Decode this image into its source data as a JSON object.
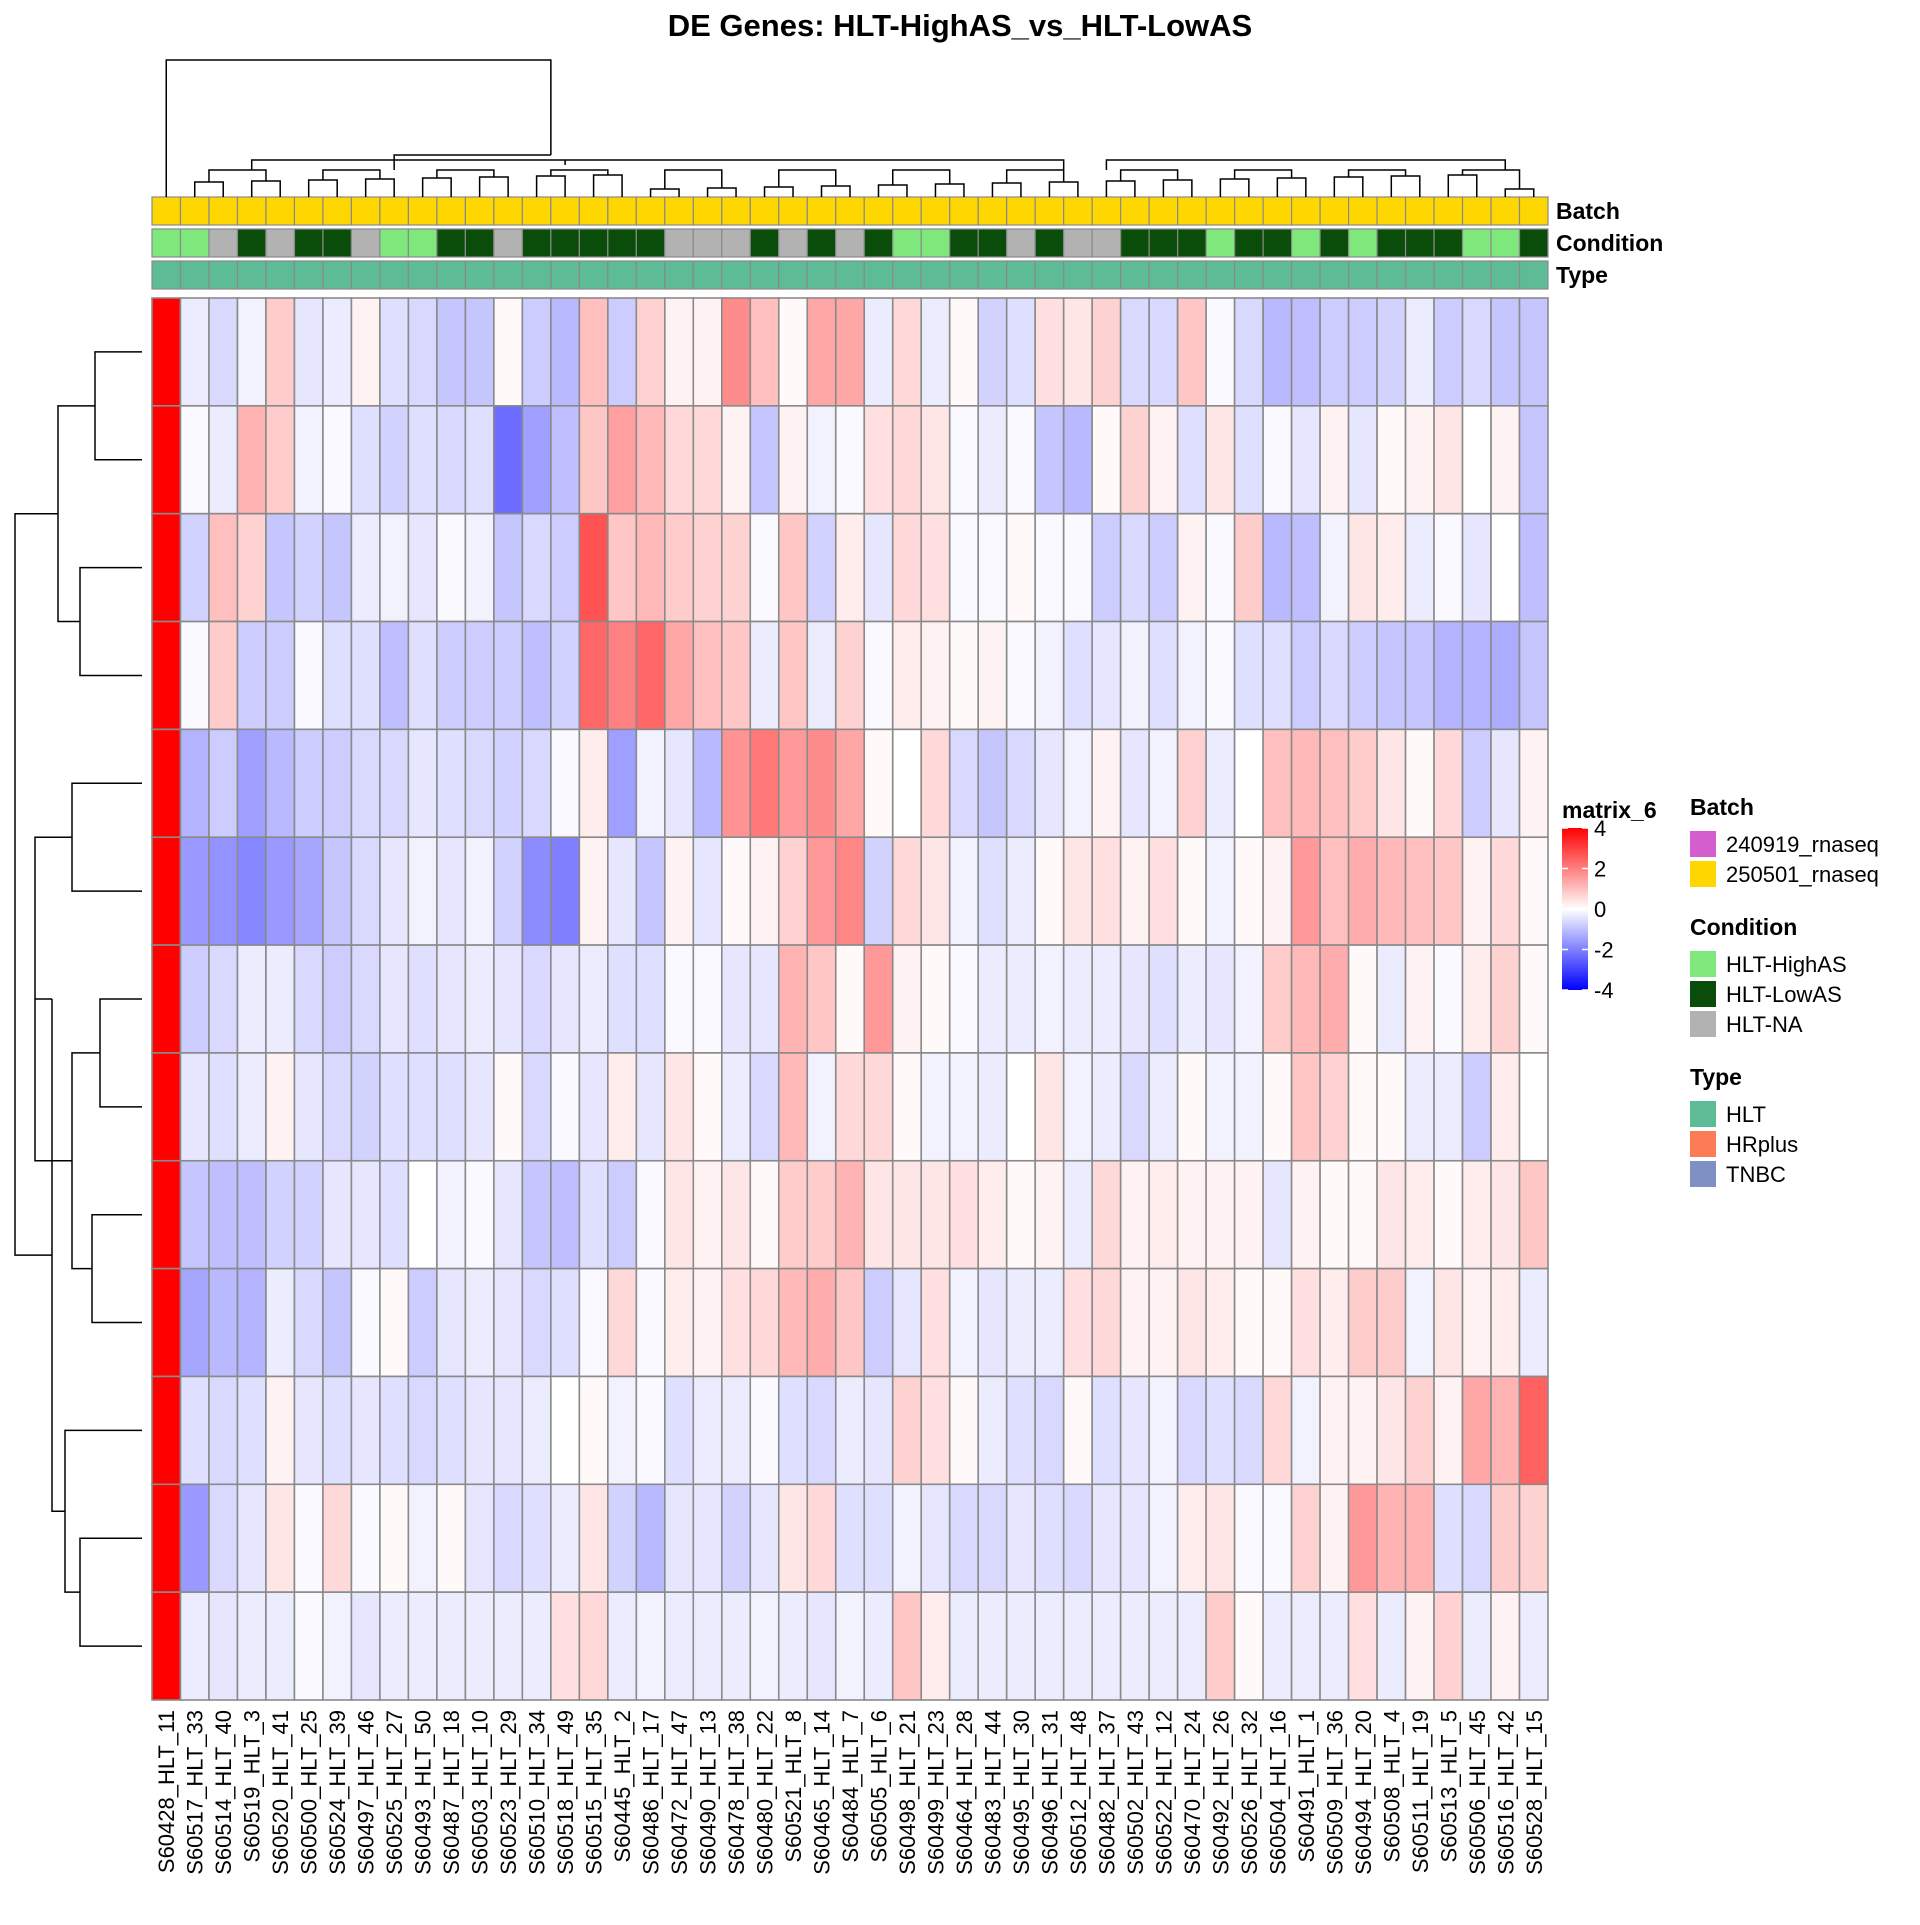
{
  "chart_data": {
    "type": "heatmap",
    "title": "DE Genes: HLT-HighAS_vs_HLT-LowAS",
    "columns": [
      "S60428_HLT_11",
      "S60517_HLT_33",
      "S60514_HLT_40",
      "S60519_HLT_3",
      "S60520_HLT_41",
      "S60500_HLT_25",
      "S60524_HLT_39",
      "S60497_HLT_46",
      "S60525_HLT_27",
      "S60493_HLT_50",
      "S60487_HLT_18",
      "S60503_HLT_10",
      "S60523_HLT_29",
      "S60510_HLT_34",
      "S60518_HLT_49",
      "S60515_HLT_35",
      "S60445_HLT_2",
      "S60486_HLT_17",
      "S60472_HLT_47",
      "S60490_HLT_13",
      "S60478_HLT_38",
      "S60480_HLT_22",
      "S60521_HLT_8",
      "S60465_HLT_14",
      "S60484_HLT_7",
      "S60505_HLT_6",
      "S60498_HLT_21",
      "S60499_HLT_23",
      "S60464_HLT_28",
      "S60483_HLT_44",
      "S60495_HLT_30",
      "S60496_HLT_31",
      "S60512_HLT_48",
      "S60482_HLT_37",
      "S60502_HLT_43",
      "S60522_HLT_12",
      "S60470_HLT_24",
      "S60492_HLT_26",
      "S60526_HLT_32",
      "S60504_HLT_16",
      "S60491_HLT_1",
      "S60509_HLT_36",
      "S60494_HLT_20",
      "S60508_HLT_4",
      "S60511_HLT_19",
      "S60513_HLT_5",
      "S60506_HLT_45",
      "S60516_HLT_42",
      "S60528_HLT_15"
    ],
    "annotations": {
      "Batch": [
        "250501_rnaseq",
        "250501_rnaseq",
        "250501_rnaseq",
        "250501_rnaseq",
        "250501_rnaseq",
        "250501_rnaseq",
        "250501_rnaseq",
        "250501_rnaseq",
        "250501_rnaseq",
        "250501_rnaseq",
        "250501_rnaseq",
        "250501_rnaseq",
        "250501_rnaseq",
        "250501_rnaseq",
        "250501_rnaseq",
        "250501_rnaseq",
        "250501_rnaseq",
        "250501_rnaseq",
        "250501_rnaseq",
        "250501_rnaseq",
        "250501_rnaseq",
        "250501_rnaseq",
        "250501_rnaseq",
        "250501_rnaseq",
        "250501_rnaseq",
        "250501_rnaseq",
        "250501_rnaseq",
        "250501_rnaseq",
        "250501_rnaseq",
        "250501_rnaseq",
        "250501_rnaseq",
        "250501_rnaseq",
        "250501_rnaseq",
        "250501_rnaseq",
        "250501_rnaseq",
        "250501_rnaseq",
        "250501_rnaseq",
        "250501_rnaseq",
        "250501_rnaseq",
        "250501_rnaseq",
        "250501_rnaseq",
        "250501_rnaseq",
        "250501_rnaseq",
        "250501_rnaseq",
        "250501_rnaseq",
        "250501_rnaseq",
        "250501_rnaseq",
        "250501_rnaseq",
        "250501_rnaseq"
      ],
      "Condition": [
        "HLT-HighAS",
        "HLT-HighAS",
        "HLT-NA",
        "HLT-LowAS",
        "HLT-NA",
        "HLT-LowAS",
        "HLT-LowAS",
        "HLT-NA",
        "HLT-HighAS",
        "HLT-HighAS",
        "HLT-LowAS",
        "HLT-LowAS",
        "HLT-NA",
        "HLT-LowAS",
        "HLT-LowAS",
        "HLT-LowAS",
        "HLT-LowAS",
        "HLT-LowAS",
        "HLT-NA",
        "HLT-NA",
        "HLT-NA",
        "HLT-LowAS",
        "HLT-NA",
        "HLT-LowAS",
        "HLT-NA",
        "HLT-LowAS",
        "HLT-HighAS",
        "HLT-HighAS",
        "HLT-LowAS",
        "HLT-LowAS",
        "HLT-NA",
        "HLT-LowAS",
        "HLT-NA",
        "HLT-NA",
        "HLT-LowAS",
        "HLT-LowAS",
        "HLT-LowAS",
        "HLT-HighAS",
        "HLT-LowAS",
        "HLT-LowAS",
        "HLT-HighAS",
        "HLT-LowAS",
        "HLT-HighAS",
        "HLT-LowAS",
        "HLT-LowAS",
        "HLT-LowAS",
        "HLT-HighAS",
        "HLT-HighAS",
        "HLT-LowAS"
      ],
      "Type": [
        "HLT",
        "HLT",
        "HLT",
        "HLT",
        "HLT",
        "HLT",
        "HLT",
        "HLT",
        "HLT",
        "HLT",
        "HLT",
        "HLT",
        "HLT",
        "HLT",
        "HLT",
        "HLT",
        "HLT",
        "HLT",
        "HLT",
        "HLT",
        "HLT",
        "HLT",
        "HLT",
        "HLT",
        "HLT",
        "HLT",
        "HLT",
        "HLT",
        "HLT",
        "HLT",
        "HLT",
        "HLT",
        "HLT",
        "HLT",
        "HLT",
        "HLT",
        "HLT",
        "HLT",
        "HLT",
        "HLT",
        "HLT",
        "HLT",
        "HLT",
        "HLT",
        "HLT",
        "HLT",
        "HLT",
        "HLT",
        "HLT"
      ]
    },
    "annotation_labels": [
      "Batch",
      "Condition",
      "Type"
    ],
    "values": [
      [
        4.5,
        -0.3,
        -0.6,
        -0.2,
        0.8,
        -0.4,
        -0.3,
        0.2,
        -0.5,
        -0.6,
        -0.9,
        -0.9,
        0.1,
        -0.8,
        -1.1,
        1.0,
        -0.8,
        0.7,
        0.2,
        0.2,
        1.8,
        1.0,
        0.1,
        1.4,
        1.4,
        -0.3,
        0.6,
        -0.3,
        0.1,
        -0.7,
        -0.5,
        0.5,
        0.4,
        0.7,
        -0.6,
        -0.6,
        0.9,
        -0.1,
        -0.6,
        -1.1,
        -1.0,
        -0.8,
        -0.8,
        -0.7,
        -0.3,
        -0.8,
        -0.6,
        -0.9,
        -0.9
      ],
      [
        4.5,
        -0.1,
        -0.3,
        1.2,
        0.8,
        -0.2,
        -0.1,
        -0.5,
        -0.7,
        -0.5,
        -0.6,
        -0.5,
        -2.3,
        -1.5,
        -1.0,
        0.9,
        1.5,
        1.1,
        0.6,
        0.6,
        0.2,
        -0.9,
        0.2,
        -0.2,
        -0.1,
        0.5,
        0.6,
        0.4,
        -0.1,
        -0.3,
        -0.1,
        -0.9,
        -1.1,
        0.1,
        0.7,
        0.2,
        -0.5,
        0.4,
        -0.5,
        -0.1,
        -0.4,
        0.2,
        -0.4,
        0.1,
        0.2,
        0.4,
        0.0,
        0.2,
        -0.9
      ],
      [
        4.5,
        -0.7,
        1.0,
        0.7,
        -0.9,
        -0.7,
        -0.9,
        -0.3,
        -0.2,
        -0.4,
        -0.1,
        -0.2,
        -0.9,
        -0.6,
        -0.8,
        2.7,
        0.9,
        1.1,
        0.8,
        0.7,
        0.7,
        -0.1,
        0.9,
        -0.7,
        0.3,
        -0.4,
        0.6,
        0.5,
        -0.1,
        -0.1,
        0.1,
        -0.1,
        -0.1,
        -0.8,
        -0.6,
        -0.8,
        0.2,
        -0.1,
        0.8,
        -1.1,
        -1.0,
        -0.2,
        0.4,
        0.3,
        -0.3,
        -0.1,
        -0.4,
        0.0,
        -1.0
      ],
      [
        4.5,
        -0.1,
        0.8,
        -0.8,
        -0.8,
        -0.1,
        -0.5,
        -0.5,
        -1.0,
        -0.5,
        -0.8,
        -0.8,
        -0.8,
        -1.0,
        -0.7,
        2.4,
        2.0,
        2.4,
        1.4,
        1.0,
        0.9,
        -0.3,
        0.9,
        -0.3,
        0.7,
        -0.1,
        0.3,
        0.2,
        0.1,
        0.2,
        -0.1,
        -0.2,
        -0.5,
        -0.4,
        -0.2,
        -0.5,
        -0.2,
        -0.1,
        -0.5,
        -0.5,
        -0.8,
        -0.6,
        -0.8,
        -0.9,
        -0.9,
        -1.2,
        -1.2,
        -1.3,
        -0.9
      ],
      [
        4.5,
        -1.2,
        -0.8,
        -1.5,
        -1.1,
        -0.8,
        -0.8,
        -0.6,
        -0.6,
        -0.4,
        -0.5,
        -0.6,
        -0.7,
        -0.6,
        -0.1,
        0.3,
        -1.5,
        -0.2,
        -0.4,
        -1.1,
        1.7,
        2.1,
        1.6,
        1.8,
        1.4,
        0.1,
        0.0,
        0.6,
        -0.6,
        -0.9,
        -0.6,
        -0.4,
        -0.2,
        0.2,
        -0.4,
        -0.2,
        0.7,
        -0.3,
        0.0,
        1.0,
        1.1,
        1.0,
        0.8,
        0.4,
        0.1,
        0.6,
        -0.8,
        -0.4,
        0.2
      ],
      [
        4.5,
        -1.6,
        -1.7,
        -1.9,
        -1.6,
        -1.4,
        -0.9,
        -0.6,
        -0.4,
        -0.2,
        -0.4,
        -0.2,
        -0.7,
        -1.8,
        -2.0,
        0.2,
        -0.4,
        -0.9,
        0.2,
        -0.4,
        0.1,
        0.2,
        0.7,
        1.6,
        1.9,
        -0.7,
        0.6,
        0.4,
        -0.2,
        -0.5,
        -0.3,
        0.1,
        0.4,
        0.5,
        0.2,
        0.5,
        0.1,
        -0.2,
        0.1,
        0.2,
        1.6,
        1.0,
        1.3,
        1.1,
        1.0,
        0.9,
        0.2,
        0.6,
        0.1
      ],
      [
        4.5,
        -0.8,
        -0.6,
        -0.3,
        -0.3,
        -0.6,
        -0.8,
        -0.6,
        -0.4,
        -0.5,
        -0.4,
        -0.3,
        -0.4,
        -0.6,
        -0.4,
        -0.3,
        -0.5,
        -0.5,
        -0.1,
        -0.1,
        -0.4,
        -0.4,
        1.2,
        0.9,
        0.1,
        1.6,
        0.2,
        0.1,
        -0.1,
        -0.3,
        -0.3,
        -0.2,
        -0.3,
        -0.3,
        -0.4,
        -0.5,
        -0.3,
        -0.4,
        -0.2,
        0.8,
        1.1,
        1.3,
        0.1,
        -0.3,
        0.2,
        -0.1,
        0.3,
        0.7,
        0.1
      ],
      [
        4.5,
        -0.4,
        -0.5,
        -0.3,
        0.2,
        -0.4,
        -0.6,
        -0.7,
        -0.5,
        -0.5,
        -0.5,
        -0.4,
        0.1,
        -0.6,
        -0.1,
        -0.4,
        0.3,
        -0.4,
        0.4,
        0.1,
        -0.3,
        -0.6,
        1.1,
        -0.2,
        0.6,
        0.6,
        0.1,
        -0.2,
        -0.2,
        -0.3,
        0.0,
        0.4,
        -0.2,
        -0.3,
        -0.6,
        -0.3,
        0.1,
        -0.2,
        -0.2,
        0.1,
        0.9,
        0.7,
        0.1,
        0.1,
        -0.3,
        -0.3,
        -0.8,
        0.3,
        0.0
      ],
      [
        4.5,
        -0.9,
        -1.0,
        -1.0,
        -0.7,
        -0.7,
        -0.4,
        -0.4,
        -0.5,
        0.0,
        -0.2,
        -0.1,
        -0.4,
        -0.9,
        -1.0,
        -0.5,
        -0.8,
        -0.1,
        0.4,
        0.2,
        0.4,
        0.1,
        0.8,
        0.8,
        1.2,
        0.4,
        0.4,
        0.4,
        0.5,
        0.3,
        0.1,
        0.2,
        -0.3,
        0.6,
        0.2,
        0.3,
        0.2,
        0.2,
        0.2,
        -0.4,
        0.2,
        0.1,
        0.1,
        0.4,
        0.3,
        0.1,
        0.3,
        0.4,
        0.9
      ],
      [
        4.5,
        -1.4,
        -1.1,
        -1.2,
        -0.3,
        -0.6,
        -0.9,
        -0.1,
        0.1,
        -0.8,
        -0.4,
        -0.3,
        -0.4,
        -0.6,
        -0.5,
        -0.1,
        0.6,
        -0.1,
        0.3,
        0.2,
        0.5,
        0.6,
        1.1,
        1.3,
        0.9,
        -0.8,
        -0.4,
        0.5,
        -0.2,
        -0.4,
        -0.3,
        -0.3,
        0.5,
        0.6,
        0.2,
        0.2,
        0.4,
        0.3,
        0.1,
        0.1,
        0.5,
        0.3,
        0.8,
        0.8,
        -0.2,
        0.4,
        0.2,
        0.3,
        -0.3
      ],
      [
        4.5,
        -0.5,
        -0.6,
        -0.5,
        0.2,
        -0.4,
        -0.5,
        -0.4,
        -0.5,
        -0.6,
        -0.5,
        -0.4,
        -0.4,
        -0.3,
        0.0,
        0.1,
        -0.2,
        -0.1,
        -0.5,
        -0.3,
        -0.3,
        -0.1,
        -0.5,
        -0.6,
        -0.3,
        -0.4,
        0.7,
        0.5,
        0.1,
        -0.3,
        -0.5,
        -0.6,
        0.1,
        -0.5,
        -0.4,
        -0.2,
        -0.6,
        -0.5,
        -0.6,
        0.6,
        -0.2,
        0.2,
        0.2,
        0.4,
        0.7,
        0.2,
        1.4,
        1.2,
        2.5
      ],
      [
        4.5,
        -1.6,
        -0.6,
        -0.4,
        0.4,
        -0.1,
        0.6,
        -0.1,
        0.1,
        -0.2,
        0.1,
        -0.4,
        -0.6,
        -0.5,
        -0.3,
        0.4,
        -0.7,
        -1.1,
        -0.4,
        -0.4,
        -0.7,
        -0.4,
        0.4,
        0.6,
        -0.5,
        -0.5,
        -0.2,
        -0.4,
        -0.6,
        -0.6,
        -0.4,
        -0.5,
        -0.6,
        -0.4,
        -0.4,
        -0.2,
        0.3,
        0.4,
        -0.1,
        -0.1,
        0.7,
        0.2,
        1.6,
        1.2,
        1.2,
        -0.5,
        -0.6,
        0.8,
        0.7
      ],
      [
        4.5,
        -0.3,
        -0.4,
        -0.3,
        -0.3,
        -0.1,
        -0.2,
        -0.4,
        -0.3,
        -0.3,
        -0.3,
        -0.3,
        -0.3,
        -0.3,
        0.5,
        0.6,
        -0.3,
        -0.2,
        -0.3,
        -0.3,
        -0.3,
        -0.2,
        -0.3,
        -0.4,
        -0.2,
        -0.3,
        0.9,
        0.3,
        -0.3,
        -0.3,
        -0.3,
        -0.3,
        -0.3,
        -0.3,
        -0.3,
        -0.3,
        -0.3,
        0.8,
        0.1,
        -0.3,
        -0.3,
        -0.3,
        0.5,
        -0.3,
        0.2,
        0.7,
        -0.3,
        0.2,
        -0.3
      ]
    ],
    "colorbar": {
      "title": "matrix_6",
      "ticks": [
        4,
        2,
        0,
        -2,
        -4
      ],
      "range": [
        -4,
        4
      ],
      "low": "#0000ff",
      "mid": "#ffffff",
      "high": "#ff0000"
    },
    "legend": {
      "Batch": {
        "items": [
          {
            "label": "240919_rnaseq",
            "color": "#d35fce"
          },
          {
            "label": "250501_rnaseq",
            "color": "#ffd700"
          }
        ]
      },
      "Condition": {
        "items": [
          {
            "label": "HLT-HighAS",
            "color": "#7fe87c"
          },
          {
            "label": "HLT-LowAS",
            "color": "#0a4d0a"
          },
          {
            "label": "HLT-NA",
            "color": "#b2b2b2"
          }
        ]
      },
      "Type": {
        "items": [
          {
            "label": "HLT",
            "color": "#5dbb95"
          },
          {
            "label": "HRplus",
            "color": "#fc7d55"
          },
          {
            "label": "TNBC",
            "color": "#7f91c2"
          }
        ]
      }
    }
  }
}
